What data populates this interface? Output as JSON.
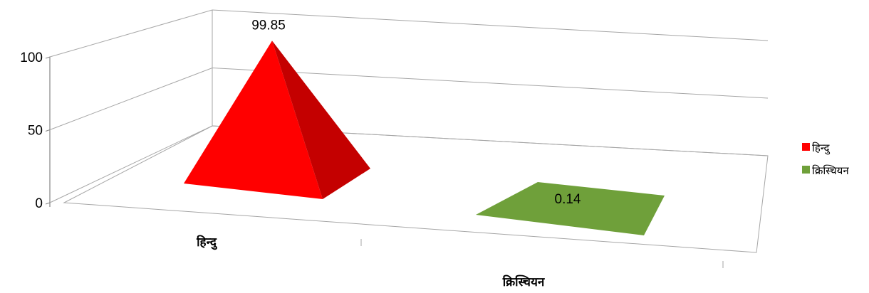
{
  "chart_data": {
    "type": "bar",
    "subtype": "3d-pyramid",
    "title": "",
    "xlabel": "",
    "ylabel": "",
    "categories": [
      "हिन्दु",
      "क्रिस्चियन"
    ],
    "values": [
      99.85,
      0.14
    ],
    "data_labels": [
      "99.85",
      "0.14"
    ],
    "y_ticks": [
      "0",
      "50",
      "100"
    ],
    "ylim": [
      0,
      100
    ],
    "grid": true,
    "legend_position": "right",
    "legend": [
      {
        "label": "हिन्दु",
        "color": "#ff0000"
      },
      {
        "label": "क्रिस्चियन",
        "color": "#6fa03a"
      }
    ],
    "colors": {
      "hindu_front": "#ff0000",
      "hindu_side": "#c40000",
      "christian": "#6fa03a",
      "gridline": "#a6a6a6"
    }
  }
}
